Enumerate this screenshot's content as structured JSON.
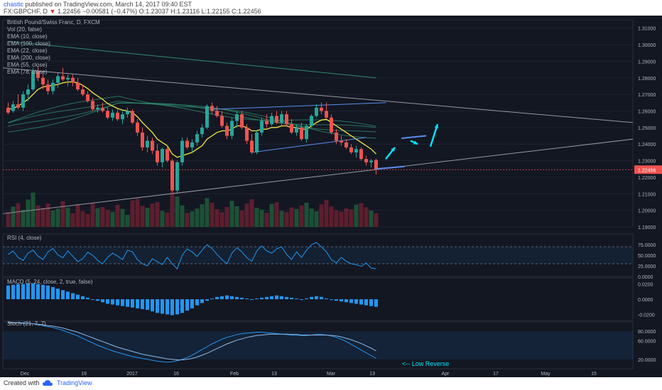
{
  "header": {
    "author": "chastic",
    "published": "published on TradingView.com, March 14, 2017 09:40 EST",
    "symbol": "FX:GBPCHF, D",
    "last": "1.22456",
    "change": "−0.00581 (−0.47%)",
    "ohlc": "O:1.23037 H:1.23116 L:1.22155 C:1.22456"
  },
  "legend": {
    "title": "British Pound/Swiss Franc, D, FXCM",
    "items": [
      "Vol (20, false)",
      "EMA (10, close)",
      "EMA (100, close)",
      "EMA (22, close)",
      "EMA (200, close)",
      "EMA (55, close)",
      "EMA (78, close)"
    ]
  },
  "panes": {
    "rsi_label": "RSI (4, close)",
    "macd_label": "MACD (5, 24, close, 2, true, false)",
    "stoch_label": "Stoch (21, 7, 7)",
    "annotation": "<-- Low Reverse"
  },
  "footer": {
    "created": "Created with",
    "brand": "TradingView"
  },
  "colors": {
    "background": "#131722",
    "up": "#26a69a",
    "down": "#ef5350",
    "ema10": "#f5e642",
    "ema_green": "#2e8b6e",
    "rsi_macd": "#2196f3",
    "arrow": "#00e5ff",
    "price_tag": "#ef5350"
  },
  "chart_data": [
    {
      "type": "candlestick",
      "title": "British Pound/Swiss Franc, D, FXCM",
      "ylim": [
        1.19,
        1.315
      ],
      "y_ticks": [
        "1.31000",
        "1.30000",
        "1.29000",
        "1.28000",
        "1.27000",
        "1.26000",
        "1.25000",
        "1.24000",
        "1.23000",
        "1.22000",
        "1.21000",
        "1.20000",
        "1.19000"
      ],
      "x_ticks": [
        "Dec",
        "19",
        "2017",
        "16",
        "Feb",
        "13",
        "Mar",
        "13",
        "Apr",
        "17",
        "May",
        "15"
      ],
      "last_price_label": "1.22456",
      "candles": [
        [
          1.262,
          1.265,
          1.258,
          1.259
        ],
        [
          1.26,
          1.266,
          1.259,
          1.264
        ],
        [
          1.264,
          1.27,
          1.261,
          1.262
        ],
        [
          1.262,
          1.272,
          1.26,
          1.27
        ],
        [
          1.27,
          1.276,
          1.266,
          1.273
        ],
        [
          1.273,
          1.286,
          1.272,
          1.284
        ],
        [
          1.284,
          1.287,
          1.278,
          1.28
        ],
        [
          1.28,
          1.283,
          1.273,
          1.276
        ],
        [
          1.276,
          1.279,
          1.27,
          1.272
        ],
        [
          1.272,
          1.279,
          1.27,
          1.277
        ],
        [
          1.277,
          1.283,
          1.274,
          1.281
        ],
        [
          1.281,
          1.286,
          1.278,
          1.279
        ],
        [
          1.279,
          1.282,
          1.275,
          1.28
        ],
        [
          1.28,
          1.282,
          1.275,
          1.277
        ],
        [
          1.277,
          1.28,
          1.272,
          1.273
        ],
        [
          1.273,
          1.276,
          1.269,
          1.27
        ],
        [
          1.27,
          1.272,
          1.265,
          1.266
        ],
        [
          1.266,
          1.268,
          1.26,
          1.261
        ],
        [
          1.261,
          1.264,
          1.259,
          1.262
        ],
        [
          1.262,
          1.265,
          1.259,
          1.26
        ],
        [
          1.26,
          1.262,
          1.255,
          1.256
        ],
        [
          1.256,
          1.261,
          1.254,
          1.259
        ],
        [
          1.259,
          1.261,
          1.254,
          1.255
        ],
        [
          1.255,
          1.26,
          1.252,
          1.258
        ],
        [
          1.258,
          1.262,
          1.256,
          1.26
        ],
        [
          1.26,
          1.261,
          1.252,
          1.253
        ],
        [
          1.253,
          1.255,
          1.245,
          1.247
        ],
        [
          1.247,
          1.25,
          1.236,
          1.238
        ],
        [
          1.238,
          1.245,
          1.235,
          1.242
        ],
        [
          1.242,
          1.244,
          1.234,
          1.236
        ],
        [
          1.236,
          1.24,
          1.227,
          1.229
        ],
        [
          1.229,
          1.238,
          1.226,
          1.237
        ],
        [
          1.237,
          1.239,
          1.229,
          1.23
        ],
        [
          1.23,
          1.231,
          1.211,
          1.212
        ],
        [
          1.212,
          1.23,
          1.21,
          1.229
        ],
        [
          1.229,
          1.244,
          1.227,
          1.242
        ],
        [
          1.242,
          1.244,
          1.237,
          1.238
        ],
        [
          1.238,
          1.243,
          1.235,
          1.241
        ],
        [
          1.241,
          1.248,
          1.239,
          1.246
        ],
        [
          1.246,
          1.252,
          1.244,
          1.25
        ],
        [
          1.25,
          1.264,
          1.249,
          1.263
        ],
        [
          1.263,
          1.265,
          1.258,
          1.26
        ],
        [
          1.26,
          1.263,
          1.256,
          1.257
        ],
        [
          1.257,
          1.26,
          1.25,
          1.251
        ],
        [
          1.251,
          1.253,
          1.243,
          1.245
        ],
        [
          1.245,
          1.256,
          1.243,
          1.254
        ],
        [
          1.254,
          1.26,
          1.25,
          1.258
        ],
        [
          1.258,
          1.26,
          1.249,
          1.25
        ],
        [
          1.25,
          1.252,
          1.24,
          1.242
        ],
        [
          1.242,
          1.246,
          1.234,
          1.235
        ],
        [
          1.235,
          1.248,
          1.234,
          1.247
        ],
        [
          1.247,
          1.256,
          1.245,
          1.254
        ],
        [
          1.254,
          1.258,
          1.25,
          1.252
        ],
        [
          1.252,
          1.259,
          1.251,
          1.257
        ],
        [
          1.257,
          1.26,
          1.252,
          1.253
        ],
        [
          1.253,
          1.26,
          1.251,
          1.258
        ],
        [
          1.258,
          1.26,
          1.251,
          1.252
        ],
        [
          1.252,
          1.255,
          1.246,
          1.247
        ],
        [
          1.247,
          1.252,
          1.245,
          1.25
        ],
        [
          1.25,
          1.253,
          1.242,
          1.243
        ],
        [
          1.243,
          1.252,
          1.241,
          1.251
        ],
        [
          1.251,
          1.258,
          1.25,
          1.257
        ],
        [
          1.257,
          1.264,
          1.256,
          1.262
        ],
        [
          1.262,
          1.265,
          1.258,
          1.26
        ],
        [
          1.26,
          1.265,
          1.255,
          1.256
        ],
        [
          1.256,
          1.258,
          1.246,
          1.247
        ],
        [
          1.247,
          1.249,
          1.24,
          1.242
        ],
        [
          1.242,
          1.245,
          1.239,
          1.241
        ],
        [
          1.241,
          1.243,
          1.237,
          1.238
        ],
        [
          1.238,
          1.24,
          1.234,
          1.235
        ],
        [
          1.235,
          1.239,
          1.232,
          1.237
        ],
        [
          1.237,
          1.238,
          1.23,
          1.231
        ],
        [
          1.231,
          1.233,
          1.227,
          1.229
        ],
        [
          1.229,
          1.231,
          1.226,
          1.23
        ],
        [
          1.2304,
          1.2312,
          1.2216,
          1.2246
        ]
      ],
      "ema10": [
        1.261,
        1.2615,
        1.263,
        1.265,
        1.267,
        1.27,
        1.273,
        1.2745,
        1.275,
        1.2755,
        1.276,
        1.277,
        1.2775,
        1.2775,
        1.277,
        1.2755,
        1.2735,
        1.271,
        1.269,
        1.267,
        1.2645,
        1.263,
        1.2615,
        1.2605,
        1.26,
        1.259,
        1.2565,
        1.253,
        1.25,
        1.247,
        1.243,
        1.241,
        1.239,
        1.234,
        1.232,
        1.233,
        1.234,
        1.235,
        1.237,
        1.239,
        1.243,
        1.245,
        1.247,
        1.248,
        1.248,
        1.249,
        1.251,
        1.251,
        1.25,
        1.248,
        1.248,
        1.249,
        1.249,
        1.25,
        1.25,
        1.251,
        1.251,
        1.25,
        1.25,
        1.249,
        1.249,
        1.251,
        1.253,
        1.2545,
        1.255,
        1.253,
        1.251,
        1.249,
        1.247,
        1.245,
        1.243,
        1.241,
        1.239,
        1.237,
        1.234
      ],
      "ema_bands": [
        {
          "start": 1.253,
          "peak": 1.27,
          "end": 1.244
        },
        {
          "start": 1.251,
          "peak": 1.268,
          "end": 1.246
        },
        {
          "start": 1.249,
          "peak": 1.266,
          "end": 1.248
        },
        {
          "start": 1.247,
          "peak": 1.264,
          "end": 1.25
        }
      ],
      "ema_high": {
        "start": 1.302,
        "end": 1.28
      },
      "volumes": [
        38,
        52,
        61,
        44,
        70,
        88,
        55,
        49,
        60,
        42,
        47,
        66,
        50,
        35,
        58,
        40,
        33,
        62,
        48,
        51,
        44,
        39,
        57,
        46,
        31,
        68,
        72,
        54,
        49,
        60,
        64,
        41,
        37,
        90,
        78,
        55,
        36,
        40,
        47,
        58,
        74,
        62,
        45,
        38,
        51,
        67,
        53,
        42,
        60,
        71,
        49,
        44,
        36,
        59,
        63,
        41,
        38,
        50,
        46,
        55,
        62,
        47,
        40,
        58,
        69,
        52,
        43,
        39,
        48,
        45,
        57,
        61,
        50,
        42,
        35
      ]
    },
    {
      "type": "line",
      "title": "RSI (4, close)",
      "ylim": [
        0,
        100
      ],
      "y_ticks": [
        "75.0000",
        "50.0000",
        "25.0000",
        "0.0000"
      ],
      "values": [
        52,
        60,
        45,
        38,
        55,
        62,
        48,
        40,
        58,
        66,
        51,
        44,
        60,
        48,
        35,
        42,
        57,
        50,
        38,
        30,
        45,
        55,
        48,
        40,
        62,
        58,
        40,
        30,
        25,
        42,
        35,
        28,
        45,
        30,
        18,
        50,
        65,
        58,
        47,
        62,
        75,
        66,
        52,
        40,
        30,
        55,
        68,
        58,
        44,
        36,
        60,
        72,
        60,
        55,
        65,
        70,
        52,
        40,
        58,
        45,
        62,
        75,
        80,
        70,
        58,
        40,
        32,
        45,
        36,
        30,
        28,
        24,
        32,
        20,
        18
      ],
      "levels": [
        70,
        30
      ]
    },
    {
      "type": "bar",
      "title": "MACD (5, 24, close, 2, true, false)",
      "ylim": [
        -0.028,
        0.028
      ],
      "y_ticks": [
        "0.0200",
        "0.0000",
        "-0.0200"
      ],
      "values": [
        0.018,
        0.019,
        0.02,
        0.02,
        0.021,
        0.021,
        0.02,
        0.019,
        0.018,
        0.016,
        0.014,
        0.012,
        0.01,
        0.008,
        0.006,
        0.004,
        0.002,
        0.0,
        -0.002,
        -0.004,
        -0.006,
        -0.007,
        -0.008,
        -0.009,
        -0.01,
        -0.011,
        -0.012,
        -0.013,
        -0.014,
        -0.016,
        -0.018,
        -0.019,
        -0.02,
        -0.021,
        -0.02,
        -0.018,
        -0.015,
        -0.012,
        -0.008,
        -0.005,
        -0.002,
        0.001,
        0.003,
        0.004,
        0.005,
        0.004,
        0.003,
        0.002,
        0.001,
        0.0,
        0.001,
        0.002,
        0.003,
        0.004,
        0.005,
        0.004,
        0.003,
        0.002,
        0.001,
        0.0,
        0.001,
        0.003,
        0.004,
        0.003,
        0.001,
        -0.001,
        -0.002,
        -0.003,
        -0.004,
        -0.005,
        -0.006,
        -0.007,
        -0.008,
        -0.009,
        -0.01
      ]
    },
    {
      "type": "line",
      "title": "Stoch (21, 7, 7)",
      "ylim": [
        0,
        100
      ],
      "y_ticks": [
        "80.0000",
        "60.0000",
        "20.0000"
      ],
      "k": [
        99,
        99,
        98,
        98,
        97,
        96,
        94,
        92,
        90,
        88,
        85,
        82,
        78,
        74,
        70,
        65,
        60,
        55,
        50,
        46,
        42,
        38,
        35,
        32,
        29,
        26,
        24,
        22,
        20,
        18,
        16,
        15,
        14,
        15,
        17,
        20,
        24,
        29,
        35,
        41,
        47,
        53,
        58,
        63,
        67,
        70,
        73,
        75,
        76,
        77,
        78,
        78,
        77,
        76,
        75,
        74,
        73,
        72,
        72,
        71,
        71,
        72,
        73,
        73,
        72,
        70,
        67,
        63,
        58,
        52,
        46,
        40,
        34,
        28,
        22
      ],
      "d": [
        98,
        98,
        98,
        97,
        97,
        96,
        95,
        94,
        92,
        91,
        89,
        87,
        84,
        81,
        78,
        74,
        70,
        66,
        62,
        58,
        54,
        50,
        46,
        43,
        40,
        37,
        34,
        31,
        29,
        27,
        25,
        23,
        21,
        20,
        19,
        19,
        20,
        22,
        25,
        29,
        33,
        38,
        43,
        48,
        53,
        57,
        61,
        64,
        67,
        69,
        71,
        72,
        73,
        74,
        74,
        74,
        74,
        73,
        73,
        72,
        72,
        72,
        72,
        72,
        72,
        71,
        70,
        68,
        65,
        62,
        58,
        54,
        49,
        44,
        38
      ]
    }
  ]
}
